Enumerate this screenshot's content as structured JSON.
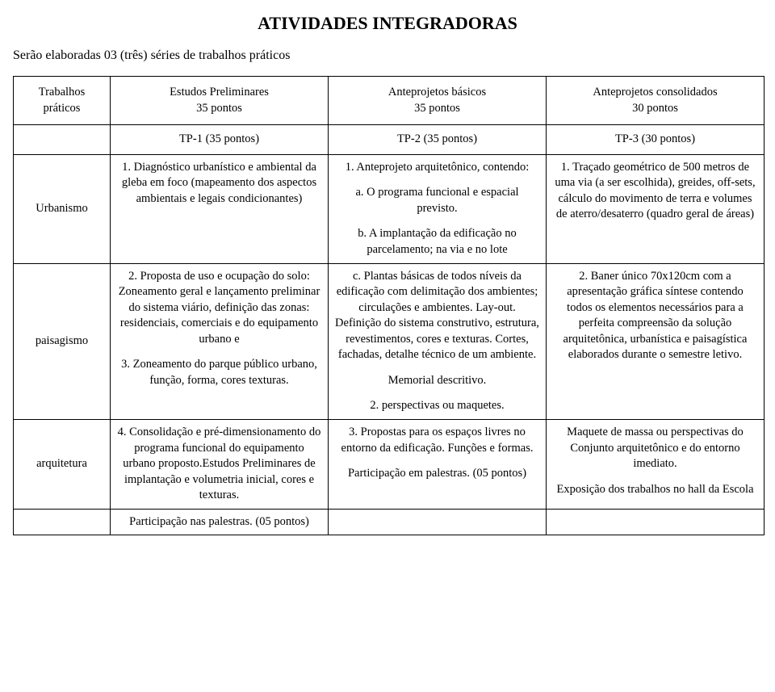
{
  "title": "ATIVIDADES INTEGRADORAS",
  "intro": "Serão elaboradas 03 (três) séries de trabalhos práticos",
  "header": {
    "side": {
      "line1": "Trabalhos",
      "line2": "práticos"
    },
    "col1": {
      "line1": "Estudos Preliminares",
      "line2": "35 pontos"
    },
    "col2": {
      "line1": "Anteprojetos básicos",
      "line2": "35 pontos"
    },
    "col3": {
      "line1": "Anteprojetos consolidados",
      "line2": "30 pontos"
    }
  },
  "tp": {
    "c1": "TP-1 (35 pontos)",
    "c2": "TP-2 (35 pontos)",
    "c3": "TP-3 (30 pontos)"
  },
  "row1": {
    "side": "Urbanismo",
    "col1": "1. Diagnóstico urbanístico e ambiental da gleba em foco (mapeamento dos aspectos ambientais e legais condicionantes)",
    "col2a": "1. Anteprojeto arquitetônico, contendo:",
    "col2b": "a. O programa funcional e espacial previsto.",
    "col2c": "b. A implantação da edificação no parcelamento; na via e no lote",
    "col3": "1. Traçado geométrico de 500 metros de uma via (a ser escolhida), greides, off-sets, cálculo do movimento de terra e volumes de aterro/desaterro (quadro geral de áreas)"
  },
  "row2": {
    "side": "paisagismo",
    "col1a": "2. Proposta de uso e ocupação do solo: Zoneamento geral e lançamento preliminar do sistema viário, definição das zonas: residenciais, comerciais e do equipamento urbano e",
    "col1b": "3. Zoneamento do parque público urbano, função, forma, cores texturas.",
    "col2a": "c. Plantas básicas de todos níveis da edificação com delimitação dos ambientes; circulações e ambientes. Lay-out. Definição do sistema construtivo, estrutura, revestimentos, cores e texturas. Cortes, fachadas, detalhe técnico de um ambiente.",
    "col2b": "Memorial descritivo.",
    "col2c": "2. perspectivas ou maquetes.",
    "col3": "2. Baner único 70x120cm com a apresentação gráfica síntese contendo todos os elementos necessários para a perfeita compreensão da solução arquitetônica, urbanística e paisagística elaborados durante o semestre letivo."
  },
  "row3": {
    "side": "arquitetura",
    "col1": "4. Consolidação e pré-dimensionamento do programa funcional do equipamento urbano proposto.Estudos Preliminares de implantação e volumetria inicial, cores e texturas.",
    "col2a": "3. Propostas para os espaços livres no entorno da edificação. Funções e formas.",
    "col2b": "Participação em palestras. (05 pontos)",
    "col3a": "Maquete de massa ou perspectivas do Conjunto arquitetônico e do entorno imediato.",
    "col3b": "Exposição dos trabalhos no hall da Escola"
  },
  "footer": {
    "col1": "Participação nas palestras. (05 pontos)"
  }
}
